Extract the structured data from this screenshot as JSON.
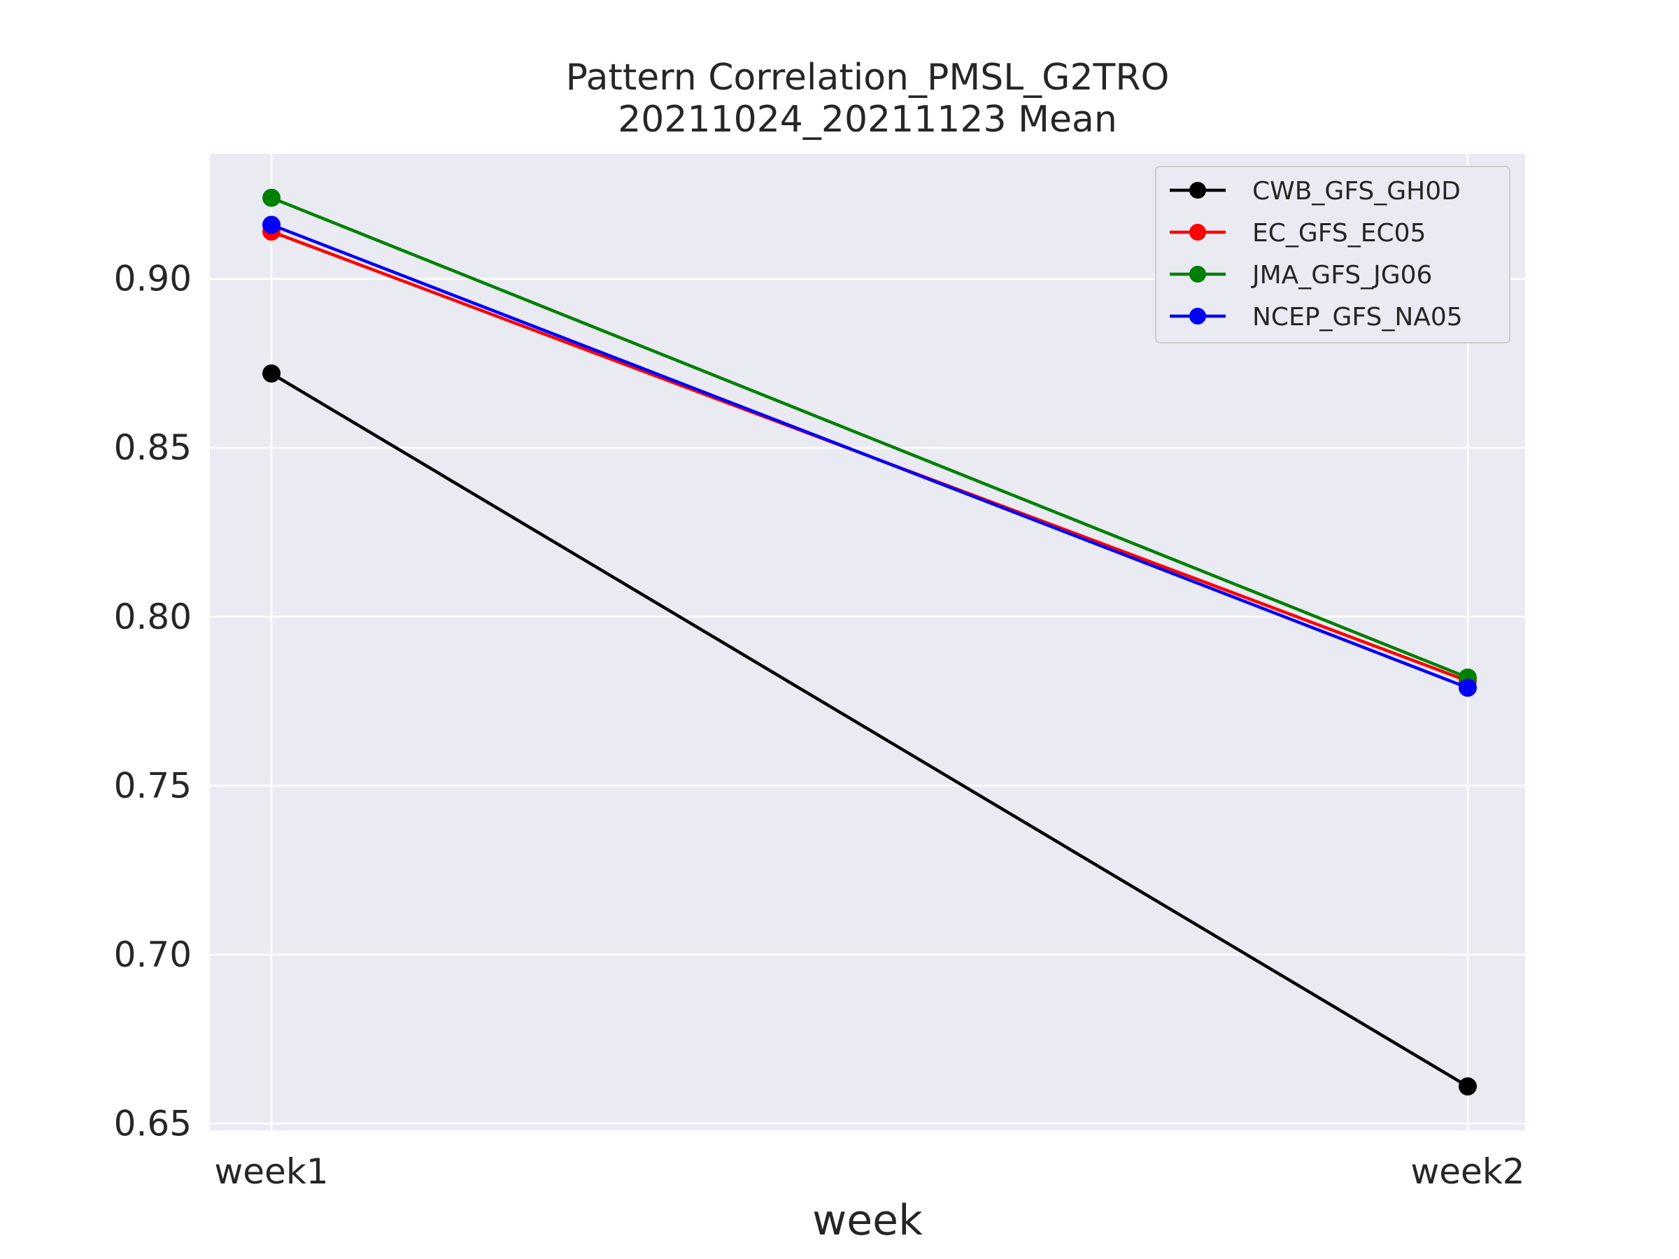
{
  "chart_data": {
    "type": "line",
    "title": "Pattern Correlation_PMSL_G2TRO",
    "subtitle": "20211024_20211123 Mean",
    "xlabel": "week",
    "ylabel": "",
    "categories": [
      "week1",
      "week2"
    ],
    "ylim": [
      0.648,
      0.937
    ],
    "yticks": [
      "0.65",
      "0.70",
      "0.75",
      "0.80",
      "0.85",
      "0.90"
    ],
    "grid": true,
    "legend_position": "top-right",
    "series": [
      {
        "name": "CWB_GFS_GH0D",
        "color": "#000000",
        "values": [
          0.872,
          0.661
        ]
      },
      {
        "name": "EC_GFS_EC05",
        "color": "#ff0000",
        "values": [
          0.914,
          0.781
        ]
      },
      {
        "name": "JMA_GFS_JG06",
        "color": "#008000",
        "values": [
          0.924,
          0.782
        ]
      },
      {
        "name": "NCEP_GFS_NA05",
        "color": "#0000ff",
        "values": [
          0.916,
          0.779
        ]
      }
    ]
  }
}
